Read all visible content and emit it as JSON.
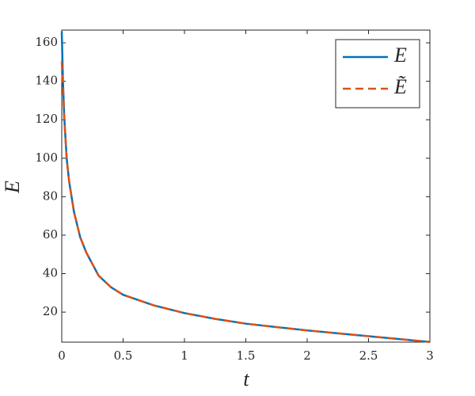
{
  "chart_data": {
    "type": "line",
    "xlabel": "t",
    "ylabel": "E",
    "x": [
      0,
      0.01,
      0.02,
      0.04,
      0.06,
      0.08,
      0.1,
      0.15,
      0.2,
      0.3,
      0.4,
      0.5,
      0.75,
      1,
      1.25,
      1.5,
      1.75,
      2,
      2.25,
      2.5,
      2.75,
      3
    ],
    "series": [
      {
        "name": "E",
        "color": "#0072bd",
        "dash": false,
        "values": [
          166,
          140,
          122,
          100,
          88,
          80,
          72,
          59,
          51,
          39,
          33,
          29,
          23.5,
          19.5,
          16.5,
          14,
          12.2,
          10.5,
          9,
          7.5,
          6,
          4.5
        ]
      },
      {
        "name": "Ẽ",
        "color": "#d95319",
        "dash": true,
        "values": [
          150,
          138,
          121,
          100,
          88,
          80,
          72,
          59,
          51,
          39,
          33,
          29,
          23.5,
          19.5,
          16.5,
          14,
          12.2,
          10.5,
          9,
          7.5,
          6,
          4.5
        ]
      }
    ],
    "xlim": [
      0,
      3
    ],
    "xticks": [
      0,
      0.5,
      1,
      1.5,
      2,
      2.5,
      3
    ],
    "ylim": [
      4.4,
      166.6
    ],
    "yticks": [
      20,
      40,
      60,
      80,
      100,
      120,
      140,
      160
    ],
    "legend": "upper-right"
  }
}
